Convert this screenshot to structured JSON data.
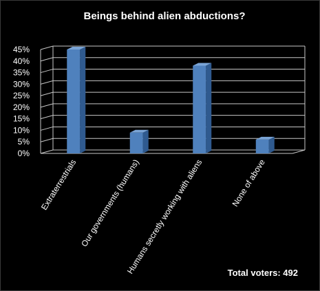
{
  "chart_data": {
    "type": "bar",
    "title": "Beings behind alien abductions?",
    "categories": [
      "Extraterrestrials",
      "Our governments (humans)",
      "Humans secretly working with aliens",
      "None of above"
    ],
    "values": [
      45,
      9,
      38,
      6
    ],
    "ylim": [
      0,
      45
    ],
    "yticks": [
      "0%",
      "5%",
      "10%",
      "15%",
      "20%",
      "25%",
      "30%",
      "35%",
      "40%",
      "45%"
    ],
    "grid": true,
    "bar_color": "#4f81bd",
    "footer": "Total voters: 492"
  }
}
